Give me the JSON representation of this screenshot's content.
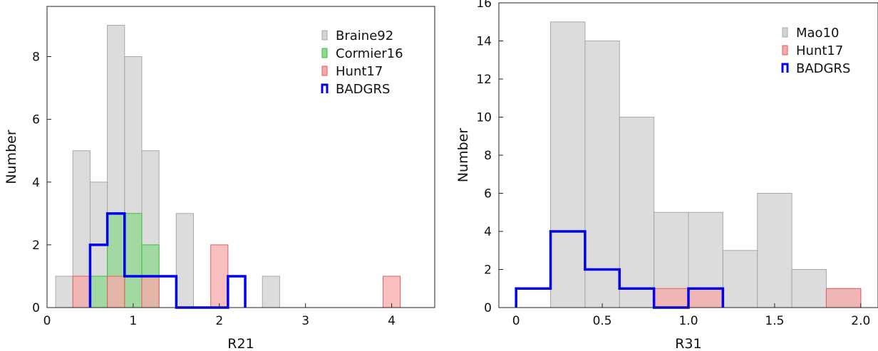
{
  "chart_data": [
    {
      "type": "bar",
      "xlabel": "R21",
      "ylabel": "Number",
      "xlim": [
        0,
        4.5
      ],
      "ylim": [
        0,
        9.6
      ],
      "xticks": [
        0,
        1,
        2,
        3,
        4
      ],
      "yticks": [
        0,
        2,
        4,
        6,
        8
      ],
      "xtick_labels": [
        "0",
        "1",
        "2",
        "3",
        "4"
      ],
      "ytick_labels": [
        "0",
        "2",
        "4",
        "6",
        "8"
      ],
      "legend_position": "top-right",
      "series": [
        {
          "name": "Braine92",
          "style": "filled",
          "fill": "#d3d3d3",
          "stroke": "#a8a8a8",
          "bins": [
            [
              0.1,
              0.3,
              1
            ],
            [
              0.3,
              0.5,
              5
            ],
            [
              0.5,
              0.7,
              4
            ],
            [
              0.7,
              0.9,
              9
            ],
            [
              0.9,
              1.1,
              8
            ],
            [
              1.1,
              1.3,
              5
            ],
            [
              1.5,
              1.7,
              3
            ],
            [
              2.5,
              2.7,
              1
            ]
          ]
        },
        {
          "name": "Cormier16",
          "style": "filled",
          "fill": "#8fd88f",
          "stroke": "#3bbf3b",
          "bins": [
            [
              0.5,
              0.7,
              1
            ],
            [
              0.7,
              0.9,
              3
            ],
            [
              0.9,
              1.1,
              3
            ],
            [
              1.1,
              1.3,
              2
            ]
          ]
        },
        {
          "name": "Hunt17",
          "style": "filled",
          "fill": "#f7a8a8",
          "stroke": "#e06060",
          "bins": [
            [
              0.3,
              0.5,
              1
            ],
            [
              0.7,
              0.9,
              1
            ],
            [
              1.1,
              1.3,
              1
            ],
            [
              1.9,
              2.1,
              2
            ],
            [
              3.9,
              4.1,
              1
            ]
          ]
        },
        {
          "name": "BADGRS",
          "style": "step",
          "stroke": "#0000ee",
          "bins": [
            [
              0.5,
              0.7,
              2
            ],
            [
              0.7,
              0.9,
              3
            ],
            [
              0.9,
              1.1,
              1
            ],
            [
              1.1,
              1.3,
              1
            ],
            [
              1.3,
              1.5,
              1
            ],
            [
              1.5,
              1.7,
              0
            ],
            [
              1.7,
              1.9,
              0
            ],
            [
              1.9,
              2.1,
              0
            ],
            [
              2.1,
              2.3,
              1
            ]
          ]
        }
      ]
    },
    {
      "type": "bar",
      "xlabel": "R31",
      "ylabel": "Number",
      "xlim": [
        -0.1,
        2.1
      ],
      "ylim": [
        0,
        16
      ],
      "xticks": [
        0,
        0.5,
        1.0,
        1.5,
        2.0
      ],
      "yticks": [
        0,
        2,
        4,
        6,
        8,
        10,
        12,
        14,
        16
      ],
      "xtick_labels": [
        "0",
        "0.5",
        "1.0",
        "1.5",
        "2.0"
      ],
      "ytick_labels": [
        "0",
        "2",
        "4",
        "6",
        "8",
        "10",
        "12",
        "14",
        "16"
      ],
      "legend_position": "top-right",
      "series": [
        {
          "name": "Mao10",
          "style": "filled",
          "fill": "#d3d3d3",
          "stroke": "#a8a8a8",
          "bins": [
            [
              0.2,
              0.4,
              15
            ],
            [
              0.4,
              0.6,
              14
            ],
            [
              0.6,
              0.8,
              10
            ],
            [
              0.8,
              1.0,
              5
            ],
            [
              1.0,
              1.2,
              5
            ],
            [
              1.2,
              1.4,
              3
            ],
            [
              1.4,
              1.6,
              6
            ],
            [
              1.6,
              1.8,
              2
            ],
            [
              1.8,
              2.0,
              1
            ]
          ]
        },
        {
          "name": "Hunt17",
          "style": "filled",
          "fill": "#f7a8a8",
          "stroke": "#e06060",
          "bins": [
            [
              0.8,
              1.0,
              1
            ],
            [
              1.0,
              1.2,
              1
            ],
            [
              1.8,
              2.0,
              1
            ]
          ]
        },
        {
          "name": "BADGRS",
          "style": "step",
          "stroke": "#0000ee",
          "bins": [
            [
              0.0,
              0.2,
              1
            ],
            [
              0.2,
              0.4,
              4
            ],
            [
              0.4,
              0.6,
              2
            ],
            [
              0.6,
              0.8,
              1
            ],
            [
              0.8,
              1.0,
              0
            ],
            [
              1.0,
              1.2,
              1
            ]
          ]
        }
      ]
    }
  ]
}
